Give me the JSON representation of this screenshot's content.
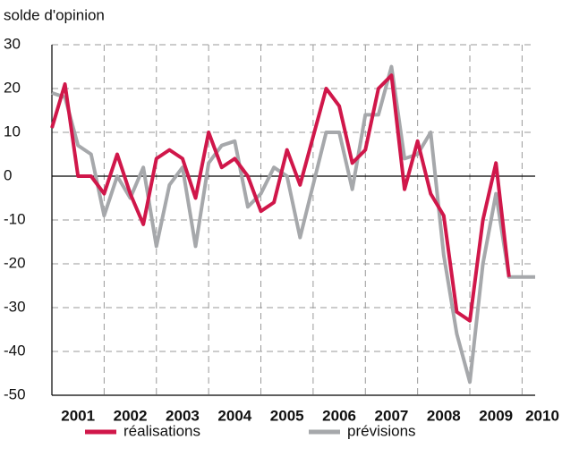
{
  "chart_data": {
    "type": "line",
    "y_label": "solde d'opinion",
    "x": [
      2001,
      2001.25,
      2001.5,
      2001.75,
      2002,
      2002.25,
      2002.5,
      2002.75,
      2003,
      2003.25,
      2003.5,
      2003.75,
      2004,
      2004.25,
      2004.5,
      2004.75,
      2005,
      2005.25,
      2005.5,
      2005.75,
      2006,
      2006.25,
      2006.5,
      2006.75,
      2007,
      2007.25,
      2007.5,
      2007.75,
      2008,
      2008.25,
      2008.5,
      2008.75,
      2009,
      2009.25,
      2009.5,
      2009.75,
      2010,
      2010.25
    ],
    "series": [
      {
        "name": "prévisions",
        "color": "#a6a8ab",
        "values": [
          19,
          18,
          7,
          5,
          -9,
          0,
          -5,
          2,
          -16,
          -2,
          2,
          -16,
          3,
          7,
          8,
          -7,
          -4,
          2,
          0,
          -14,
          -2,
          10,
          10,
          -3,
          14,
          14,
          25,
          4,
          5,
          10,
          -18,
          -36,
          -47,
          -20,
          -4,
          -23,
          -23,
          -23
        ]
      },
      {
        "name": "réalisations",
        "color": "#d0174a",
        "values": [
          11,
          21,
          0,
          0,
          -4,
          5,
          -4,
          -11,
          4,
          6,
          4,
          -5,
          10,
          2,
          4,
          0,
          -8,
          -6,
          6,
          -2,
          9,
          20,
          16,
          3,
          6,
          20,
          23,
          -3,
          8,
          -4,
          -9,
          -31,
          -33,
          -10,
          3,
          -23,
          null,
          null
        ]
      }
    ],
    "xlim": [
      2001,
      2010.25
    ],
    "xticks": [
      2001,
      2002,
      2003,
      2004,
      2005,
      2006,
      2007,
      2008,
      2009,
      2010
    ],
    "ylim": [
      -50,
      30
    ],
    "yticks": [
      -50,
      -40,
      -30,
      -20,
      -10,
      0,
      10,
      20,
      30
    ],
    "grid": true
  }
}
